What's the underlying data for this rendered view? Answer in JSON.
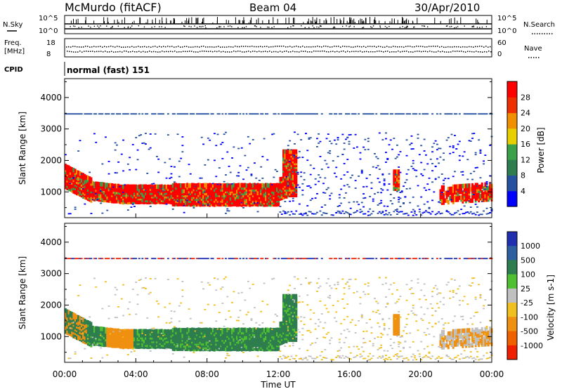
{
  "header": {
    "station": "McMurdo (fitACF)",
    "beam": "Beam 04",
    "date": "30/Apr/2010"
  },
  "noise_panel": {
    "left_label": "N.Sky",
    "right_label": "N.Search",
    "left_ticks": [
      "10^5",
      "10^0"
    ],
    "right_ticks": [
      "10^5",
      "10^0"
    ]
  },
  "freq_panel": {
    "left_label_1": "Freq.",
    "left_label_2": "[MHz]",
    "right_label": "Nave",
    "left_ticks": [
      "18",
      "8"
    ],
    "right_ticks": [
      "60",
      "0"
    ]
  },
  "cpid": {
    "label": "CPID",
    "value": "normal (fast) 151"
  },
  "chart_data": [
    {
      "type": "heatmap",
      "quantity": "Power",
      "ylabel": "Slant Range [km]",
      "xlabel": "",
      "ylim": [
        180,
        4600
      ],
      "xlim": [
        0,
        24
      ],
      "yticks": [
        "1000",
        "2000",
        "3000",
        "4000"
      ],
      "colorbar_label": "Power [dB]",
      "colorbar_ticks": [
        "4",
        "8",
        "12",
        "16",
        "20",
        "24",
        "28"
      ],
      "colorbar_colors": [
        "#0000ff",
        "#2650a0",
        "#2e7d4f",
        "#3aa04a",
        "#e8d000",
        "#f09000",
        "#ee3000",
        "#ff0000"
      ],
      "colorbar_range": [
        0,
        32
      ]
    },
    {
      "type": "heatmap",
      "quantity": "Velocity",
      "ylabel": "Slant Range [km]",
      "xlabel": "Time UT",
      "ylim": [
        180,
        4600
      ],
      "xlim": [
        0,
        24
      ],
      "yticks": [
        "1000",
        "2000",
        "3000",
        "4000"
      ],
      "xticks": [
        "00:00",
        "04:00",
        "08:00",
        "12:00",
        "16:00",
        "20:00",
        "00:00"
      ],
      "colorbar_label": "Velocity [m s-1]",
      "colorbar_ticks": [
        "1000",
        "500",
        "100",
        "25",
        "-25",
        "-100",
        "-500",
        "-1000"
      ],
      "colorbar_colors": [
        "#1f2fb0",
        "#2e5fa0",
        "#2e7d4f",
        "#4fc030",
        "#c0c0c0",
        "#f0c020",
        "#f09010",
        "#f06000",
        "#ee2000"
      ]
    }
  ]
}
